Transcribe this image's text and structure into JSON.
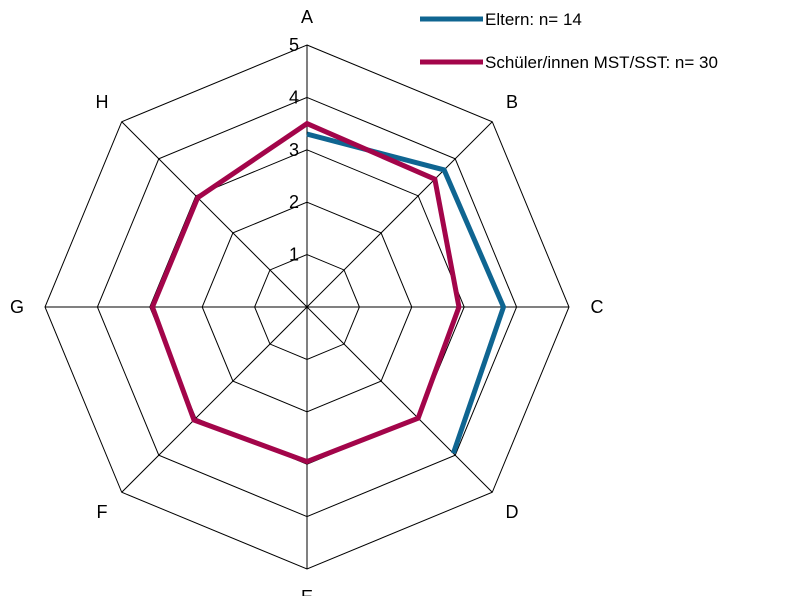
{
  "chart_data": {
    "type": "radar",
    "categories": [
      "A",
      "B",
      "C",
      "D",
      "E",
      "F",
      "G",
      "H"
    ],
    "range": [
      0,
      5
    ],
    "ticks": [
      "1",
      "2",
      "3",
      "4",
      "5"
    ],
    "grid": true,
    "legend_position": "top-right",
    "series": [
      {
        "name": "Eltern: n= 14",
        "color": "#0f6591",
        "closed": false,
        "values": [
          3.3,
          3.7,
          3.75,
          3.95,
          null,
          null,
          null,
          null
        ]
      },
      {
        "name": "Schüler/innen MST/SST: n= 30",
        "color": "#a3054a",
        "closed": true,
        "values": [
          3.5,
          3.45,
          2.9,
          3.0,
          2.95,
          3.05,
          2.95,
          2.95
        ]
      }
    ]
  }
}
